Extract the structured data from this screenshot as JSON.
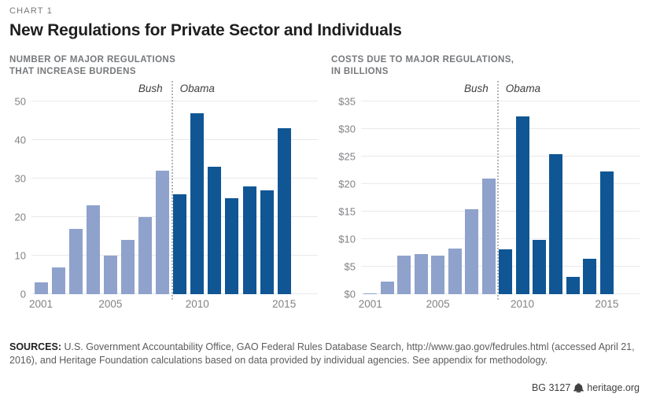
{
  "header": {
    "kicker": "CHART 1",
    "title": "New Regulations for Private Sector and Individuals"
  },
  "colors": {
    "bush_bar": "#8EA2CC",
    "obama_bar": "#105694",
    "gridline": "#E8E9EB",
    "axis_text": "#808285",
    "separator": "#B3B5B8"
  },
  "chart_data": [
    {
      "type": "bar",
      "subtitle": "NUMBER OF MAJOR REGULATIONS\nTHAT INCREASE BURDENS",
      "categories": [
        "2001",
        "2002",
        "2003",
        "2004",
        "2005",
        "2006",
        "2007",
        "2008",
        "2009",
        "2010",
        "2011",
        "2012",
        "2013",
        "2014",
        "2015"
      ],
      "values": [
        3,
        7,
        17,
        23,
        10,
        14,
        20,
        32,
        26,
        47,
        33,
        25,
        28,
        27,
        43
      ],
      "split_index": 8,
      "era_labels": {
        "left": "Bush",
        "right": "Obama"
      },
      "ylim": [
        0,
        50
      ],
      "yticks": [
        {
          "label": "0",
          "value": 0
        },
        {
          "label": "10",
          "value": 10
        },
        {
          "label": "20",
          "value": 20
        },
        {
          "label": "30",
          "value": 30
        },
        {
          "label": "40",
          "value": 40
        },
        {
          "label": "50",
          "value": 50
        }
      ],
      "xticks": [
        {
          "label": "2001",
          "index": 0
        },
        {
          "label": "2005",
          "index": 4
        },
        {
          "label": "2010",
          "index": 9
        },
        {
          "label": "2015",
          "index": 14
        }
      ],
      "grid": true,
      "legend": "none"
    },
    {
      "type": "bar",
      "subtitle": "COSTS DUE TO MAJOR REGULATIONS,\nIN BILLIONS",
      "categories": [
        "2001",
        "2002",
        "2003",
        "2004",
        "2005",
        "2006",
        "2007",
        "2008",
        "2009",
        "2010",
        "2011",
        "2012",
        "2013",
        "2014",
        "2015"
      ],
      "values": [
        0.1,
        2.3,
        7.0,
        7.3,
        7.0,
        8.3,
        15.4,
        21.0,
        8.1,
        32.3,
        9.8,
        25.4,
        3.1,
        6.5,
        22.3
      ],
      "split_index": 8,
      "era_labels": {
        "left": "Bush",
        "right": "Obama"
      },
      "ylim": [
        0,
        35
      ],
      "yticks": [
        {
          "label": "$0",
          "value": 0
        },
        {
          "label": "$5",
          "value": 5
        },
        {
          "label": "$10",
          "value": 10
        },
        {
          "label": "$15",
          "value": 15
        },
        {
          "label": "$20",
          "value": 20
        },
        {
          "label": "$25",
          "value": 25
        },
        {
          "label": "$30",
          "value": 30
        },
        {
          "label": "$35",
          "value": 35
        }
      ],
      "xticks": [
        {
          "label": "2001",
          "index": 0
        },
        {
          "label": "2005",
          "index": 4
        },
        {
          "label": "2010",
          "index": 9
        },
        {
          "label": "2015",
          "index": 14
        }
      ],
      "grid": true,
      "legend": "none"
    }
  ],
  "footer": {
    "sources_label": "SOURCES:",
    "sources_text": " U.S. Government Accountability Office, GAO Federal Rules Database Search, http://www.gao.gov/fedrules.html (accessed April 21, 2016), and Heritage Foundation calculations based on data provided by individual agencies. See appendix for methodology.",
    "report_id": "BG 3127",
    "site": "heritage.org"
  }
}
